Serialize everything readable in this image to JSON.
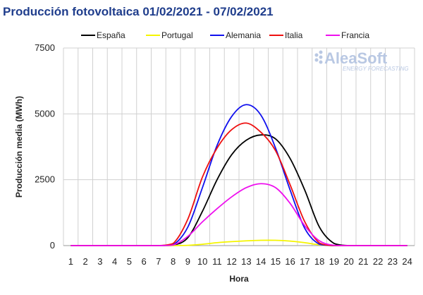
{
  "chart_data": {
    "type": "line",
    "title": "Producción fotovoltaica 01/02/2021 - 07/02/2021",
    "xlabel": "Hora",
    "ylabel": "Producción media (MWh)",
    "categories": [
      1,
      2,
      3,
      4,
      5,
      6,
      7,
      8,
      9,
      10,
      11,
      12,
      13,
      14,
      15,
      16,
      17,
      18,
      19,
      20,
      21,
      22,
      23,
      24
    ],
    "ylim": [
      0,
      7500
    ],
    "yticks": [
      0,
      2500,
      5000,
      7500
    ],
    "grid": true,
    "legend_position": "top",
    "series": [
      {
        "name": "España",
        "color": "#000000",
        "values": [
          0,
          0,
          0,
          0,
          0,
          0,
          0,
          15,
          300,
          1300,
          2500,
          3450,
          4000,
          4200,
          4050,
          3300,
          2100,
          700,
          80,
          0,
          0,
          0,
          0,
          0
        ]
      },
      {
        "name": "Portugal",
        "color": "#f5f500",
        "values": [
          0,
          0,
          0,
          0,
          0,
          0,
          0,
          0,
          10,
          50,
          110,
          150,
          180,
          200,
          200,
          170,
          110,
          30,
          0,
          0,
          0,
          0,
          0,
          0
        ]
      },
      {
        "name": "Alemania",
        "color": "#1010ee",
        "values": [
          0,
          0,
          0,
          0,
          0,
          0,
          0,
          30,
          700,
          2200,
          3800,
          4900,
          5350,
          4950,
          3700,
          2100,
          650,
          50,
          0,
          0,
          0,
          0,
          0,
          0
        ]
      },
      {
        "name": "Italia",
        "color": "#ee1010",
        "values": [
          0,
          0,
          0,
          0,
          0,
          0,
          0,
          80,
          1000,
          2600,
          3700,
          4400,
          4650,
          4300,
          3600,
          2300,
          900,
          100,
          0,
          0,
          0,
          0,
          0,
          0
        ]
      },
      {
        "name": "Francia",
        "color": "#ee10ee",
        "values": [
          0,
          0,
          0,
          0,
          0,
          0,
          0,
          20,
          350,
          900,
          1400,
          1850,
          2200,
          2350,
          2200,
          1600,
          750,
          180,
          10,
          0,
          0,
          0,
          0,
          0
        ]
      }
    ]
  },
  "logo": {
    "name": "AleaSoft",
    "tagline": "ENERGY FORECASTING"
  }
}
